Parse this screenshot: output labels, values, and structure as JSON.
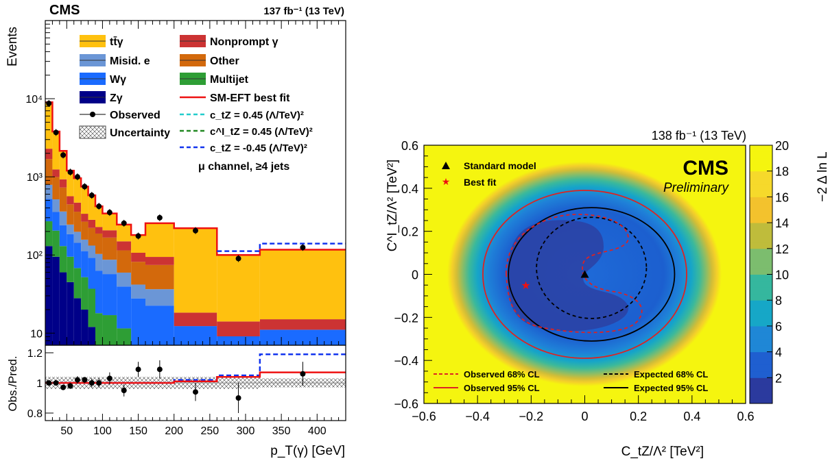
{
  "left_panel": {
    "cms_label": "CMS",
    "lumi_label": "137 fb⁻¹ (13 TeV)",
    "ylabel": "Events",
    "ratio_ylabel": "Obs./Pred.",
    "xlabel": "p_T(γ) [GeV]",
    "channel_label": "μ channel, ≥4 jets"
  },
  "right_panel": {
    "lumi_label": "138 fb⁻¹ (13 TeV)",
    "cms_label": "CMS",
    "preliminary_label": "Preliminary",
    "xlabel": "C_tZ/Λ² [TeV²]",
    "ylabel": "C^I_tZ/Λ² [TeV²]",
    "zlabel": "−2 Δ ln L"
  },
  "chart_data": [
    {
      "type": "bar",
      "subtype": "stacked-histogram",
      "yscale": "log",
      "ylim": [
        7,
        100000
      ],
      "xlim": [
        20,
        440
      ],
      "bin_edges": [
        20,
        30,
        40,
        50,
        60,
        70,
        80,
        90,
        100,
        120,
        140,
        160,
        200,
        260,
        320,
        440
      ],
      "x_ticks": [
        "50",
        "100",
        "150",
        "200",
        "250",
        "300",
        "350",
        "400"
      ],
      "y_ticks": [
        "10",
        "10²",
        "10³",
        "10⁴"
      ],
      "stack": [
        {
          "name": "Zγ",
          "color": "#000088",
          "values": [
            130,
            95,
            60,
            45,
            28,
            20,
            12,
            6,
            3,
            1.5,
            0.8,
            0.5,
            0.3,
            0.1,
            0.05
          ]
        },
        {
          "name": "Multijet",
          "color": "#2e9e35",
          "values": [
            140,
            110,
            70,
            50,
            40,
            32,
            25,
            12,
            14,
            10,
            5,
            4,
            2,
            1,
            1
          ]
        },
        {
          "name": "Wγ",
          "color": "#1a6bff",
          "values": [
            250,
            150,
            110,
            90,
            75,
            60,
            55,
            45,
            40,
            28,
            22,
            18,
            10,
            8,
            10
          ]
        },
        {
          "name": "Misid. e",
          "color": "#6b96d6",
          "values": [
            270,
            160,
            120,
            60,
            55,
            45,
            40,
            40,
            30,
            20,
            14,
            14,
            0,
            0,
            0
          ]
        },
        {
          "name": "Other",
          "color": "#d3690c",
          "values": [
            900,
            480,
            370,
            200,
            160,
            110,
            90,
            85,
            80,
            55,
            40,
            38,
            0,
            0,
            0
          ]
        },
        {
          "name": "Nonprompt γ",
          "color": "#cc3333",
          "values": [
            600,
            250,
            200,
            120,
            110,
            70,
            60,
            40,
            40,
            35,
            25,
            20,
            6,
            5,
            4
          ]
        },
        {
          "name": "tt̄γ",
          "color": "#ffc10f",
          "values": [
            6600,
            2600,
            1200,
            650,
            500,
            410,
            300,
            190,
            130,
            95,
            74,
            160,
            200,
            85,
            100
          ]
        }
      ],
      "sm_eft_best_fit": {
        "name": "SM-EFT best fit",
        "color": "#ee1111",
        "values": [
          9000,
          3800,
          2150,
          1200,
          960,
          750,
          580,
          420,
          340,
          245,
          180,
          255,
          220,
          100,
          117
        ]
      },
      "eft_variations": [
        {
          "name": "c_tZ = 0.45 (Λ/TeV)²",
          "color": "#22cccc"
        },
        {
          "name": "c^I_tZ = 0.45 (Λ/TeV)²",
          "color": "#228822"
        },
        {
          "name": "c_tZ = -0.45 (Λ/TeV)²",
          "color": "#1133ee",
          "values_high_bins": [
            112,
            140
          ]
        }
      ],
      "observed": {
        "name": "Observed",
        "x": [
          25,
          35,
          45,
          55,
          65,
          75,
          85,
          95,
          110,
          130,
          150,
          180,
          230,
          290,
          380
        ],
        "y": [
          8700,
          3700,
          1900,
          1150,
          1000,
          750,
          580,
          420,
          350,
          255,
          175,
          300,
          205,
          90,
          125
        ]
      },
      "uncertainty": {
        "name": "Uncertainty"
      },
      "ratio": {
        "ylim": [
          0.75,
          1.25
        ],
        "y_ticks": [
          "0.8",
          "1",
          "1.2"
        ],
        "observed_x": [
          25,
          35,
          45,
          55,
          65,
          75,
          85,
          95,
          110,
          130,
          150,
          180,
          230,
          290,
          380
        ],
        "observed_y": [
          1.0,
          1.0,
          0.97,
          0.98,
          1.02,
          1.02,
          1.0,
          1.0,
          1.03,
          0.95,
          1.09,
          1.09,
          0.94,
          0.9,
          1.06
        ],
        "best_fit_y": [
          1.0,
          1.0,
          1.0,
          1.0,
          1.0,
          1.0,
          1.0,
          1.0,
          1.0,
          1.0,
          1.0,
          1.0,
          1.01,
          1.04,
          1.07
        ],
        "ctz_neg_y": [
          1.0,
          1.0,
          1.0,
          1.0,
          1.0,
          1.0,
          1.0,
          1.0,
          1.0,
          1.0,
          1.0,
          1.0,
          1.02,
          1.05,
          1.19
        ]
      }
    },
    {
      "type": "heatmap",
      "xlim": [
        -0.6,
        0.6
      ],
      "ylim": [
        -0.6,
        0.6
      ],
      "zlim": [
        0,
        20
      ],
      "x_ticks": [
        "−0.6",
        "−0.4",
        "−0.2",
        "0",
        "0.2",
        "0.4",
        "0.6"
      ],
      "y_ticks": [
        "−0.6",
        "−0.4",
        "−0.2",
        "0",
        "0.2",
        "0.4",
        "0.6"
      ],
      "z_ticks": [
        "2",
        "4",
        "6",
        "8",
        "10",
        "12",
        "14",
        "16",
        "18",
        "20"
      ],
      "colorscale": [
        "#2b3a9e",
        "#1f5fd0",
        "#1f87d6",
        "#16a7c7",
        "#35b79e",
        "#7cbd6e",
        "#bfbc3b",
        "#f3c22d",
        "#f6d92b",
        "#f5f50f"
      ],
      "markers": [
        {
          "name": "Standard model",
          "x": 0.0,
          "y": 0.0,
          "symbol": "triangle"
        },
        {
          "name": "Best fit",
          "x": -0.22,
          "y": -0.05,
          "symbol": "star"
        }
      ],
      "contours": [
        {
          "name": "Observed 68% CL",
          "style": "dashed",
          "color": "#dd2222"
        },
        {
          "name": "Observed 95% CL",
          "style": "solid",
          "color": "#dd2222",
          "cx": 0.0,
          "cy": 0.0,
          "rx": 0.38,
          "ry": 0.39
        },
        {
          "name": "Expected 68% CL",
          "style": "dashed",
          "color": "#000000",
          "cx": 0.025,
          "cy": 0.03,
          "rx": 0.205,
          "ry": 0.235
        },
        {
          "name": "Expected 95% CL",
          "style": "solid",
          "color": "#000000",
          "cx": 0.025,
          "cy": 0.0,
          "rx": 0.31,
          "ry": 0.31
        }
      ]
    }
  ]
}
